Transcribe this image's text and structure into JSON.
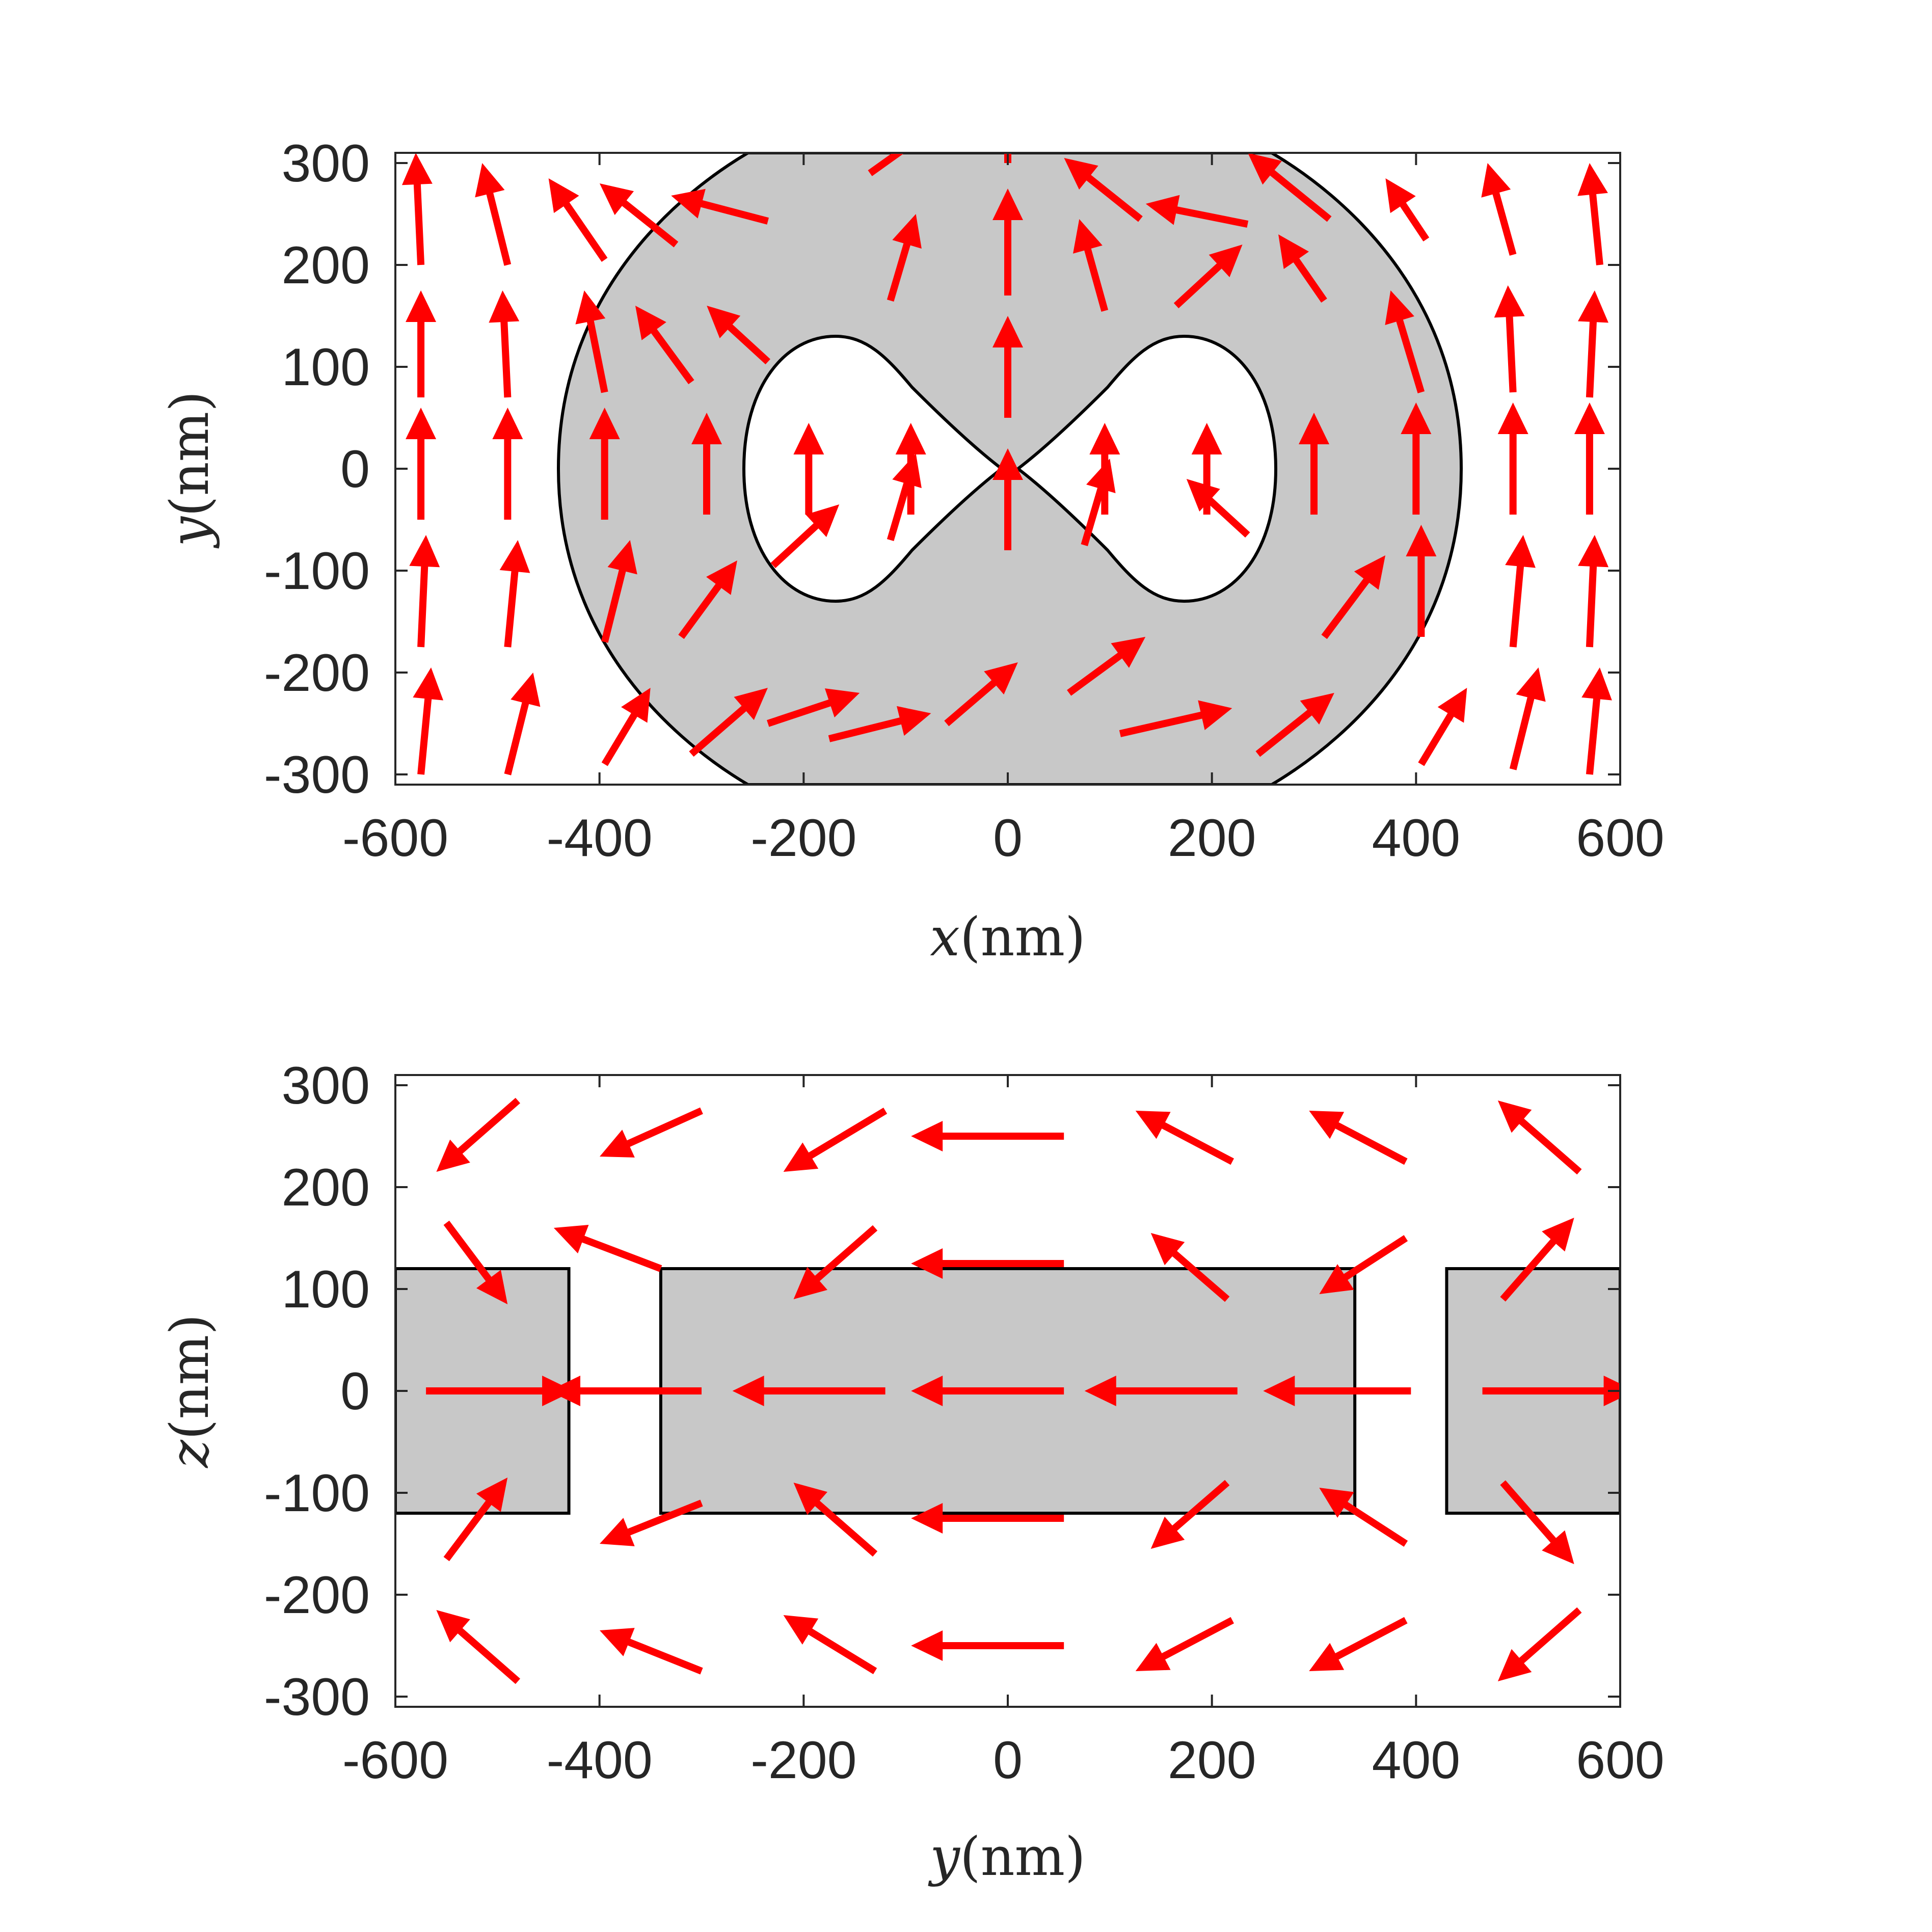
{
  "colors": {
    "arrow": "#ff0000",
    "fill": "#c8c8c8",
    "outline": "#000000",
    "text": "#262626"
  },
  "chart_data": [
    {
      "type": "quiver",
      "xlabel_var": "x",
      "xlabel_unit": "(nm)",
      "ylabel_var": "y",
      "ylabel_unit": "(nm)",
      "xlim": [
        -600,
        600
      ],
      "ylim": [
        -310,
        310
      ],
      "xticks": [
        "-600",
        "-400",
        "-200",
        "0",
        "200",
        "400",
        "600"
      ],
      "yticks": [
        "-300",
        "-200",
        "-100",
        "0",
        "100",
        "200",
        "300"
      ],
      "grid": false,
      "shapes": {
        "outer_region_x_range": [
          -440,
          440
        ],
        "inner_lobes_center_x": [
          -175,
          175
        ],
        "inner_lobe_half_height": 130
      },
      "arrows": [
        {
          "x": -575,
          "y": -300,
          "u": 10,
          "v": 105
        },
        {
          "x": -575,
          "y": -175,
          "u": 5,
          "v": 110
        },
        {
          "x": -575,
          "y": -50,
          "u": 0,
          "v": 110
        },
        {
          "x": -575,
          "y": 70,
          "u": 0,
          "v": 105
        },
        {
          "x": -575,
          "y": 200,
          "u": -5,
          "v": 110
        },
        {
          "x": -490,
          "y": -300,
          "u": 25,
          "v": 100
        },
        {
          "x": -490,
          "y": -175,
          "u": 10,
          "v": 105
        },
        {
          "x": -490,
          "y": -50,
          "u": 0,
          "v": 110
        },
        {
          "x": -490,
          "y": 70,
          "u": -5,
          "v": 105
        },
        {
          "x": -490,
          "y": 200,
          "u": -25,
          "v": 100
        },
        {
          "x": -395,
          "y": -290,
          "u": 45,
          "v": 75
        },
        {
          "x": -395,
          "y": -170,
          "u": 25,
          "v": 100
        },
        {
          "x": -395,
          "y": -50,
          "u": 0,
          "v": 110
        },
        {
          "x": -395,
          "y": 75,
          "u": -20,
          "v": 100
        },
        {
          "x": -395,
          "y": 205,
          "u": -55,
          "v": 80
        },
        {
          "x": -310,
          "y": -280,
          "u": 75,
          "v": 65
        },
        {
          "x": -320,
          "y": -165,
          "u": 55,
          "v": 75
        },
        {
          "x": -295,
          "y": -45,
          "u": 0,
          "v": 100
        },
        {
          "x": -310,
          "y": 85,
          "u": -55,
          "v": 75
        },
        {
          "x": -325,
          "y": 220,
          "u": -75,
          "v": 60
        },
        {
          "x": -235,
          "y": -250,
          "u": 90,
          "v": 30
        },
        {
          "x": -230,
          "y": -95,
          "u": 65,
          "v": 60
        },
        {
          "x": -195,
          "y": -45,
          "u": 0,
          "v": 90
        },
        {
          "x": -235,
          "y": 105,
          "u": -60,
          "v": 55
        },
        {
          "x": -235,
          "y": 243,
          "u": -95,
          "v": 25
        },
        {
          "x": -175,
          "y": -265,
          "u": 100,
          "v": 25
        },
        {
          "x": -115,
          "y": -70,
          "u": 25,
          "v": 85
        },
        {
          "x": -95,
          "y": -45,
          "u": 0,
          "v": 90
        },
        {
          "x": -115,
          "y": 165,
          "u": 25,
          "v": 85
        },
        {
          "x": -135,
          "y": 290,
          "u": 70,
          "v": 50
        },
        {
          "x": -60,
          "y": -250,
          "u": 70,
          "v": 60
        },
        {
          "x": 0,
          "y": -80,
          "u": 0,
          "v": 100
        },
        {
          "x": 0,
          "y": 50,
          "u": 0,
          "v": 100
        },
        {
          "x": 0,
          "y": 170,
          "u": 0,
          "v": 105
        },
        {
          "x": 0,
          "y": 300,
          "u": 0,
          "v": 100
        },
        {
          "x": 60,
          "y": -220,
          "u": 75,
          "v": 55
        },
        {
          "x": 110,
          "y": -260,
          "u": 110,
          "v": 25
        },
        {
          "x": 95,
          "y": -45,
          "u": 0,
          "v": 90
        },
        {
          "x": 75,
          "y": -75,
          "u": 25,
          "v": 85
        },
        {
          "x": 95,
          "y": 155,
          "u": -25,
          "v": 90
        },
        {
          "x": 130,
          "y": 245,
          "u": -75,
          "v": 60
        },
        {
          "x": 235,
          "y": -65,
          "u": -60,
          "v": 55
        },
        {
          "x": 195,
          "y": -45,
          "u": 0,
          "v": 90
        },
        {
          "x": 165,
          "y": 160,
          "u": 65,
          "v": 60
        },
        {
          "x": 235,
          "y": 240,
          "u": -100,
          "v": 20
        },
        {
          "x": 245,
          "y": -280,
          "u": 75,
          "v": 60
        },
        {
          "x": 300,
          "y": -45,
          "u": 0,
          "v": 100
        },
        {
          "x": 310,
          "y": -165,
          "u": 60,
          "v": 80
        },
        {
          "x": 310,
          "y": 165,
          "u": -45,
          "v": 65
        },
        {
          "x": 315,
          "y": 245,
          "u": -80,
          "v": 65
        },
        {
          "x": 405,
          "y": -290,
          "u": 45,
          "v": 75
        },
        {
          "x": 405,
          "y": -165,
          "u": 0,
          "v": 110
        },
        {
          "x": 400,
          "y": -45,
          "u": 0,
          "v": 110
        },
        {
          "x": 405,
          "y": 75,
          "u": -30,
          "v": 100
        },
        {
          "x": 410,
          "y": 225,
          "u": -40,
          "v": 60
        },
        {
          "x": 495,
          "y": -295,
          "u": 25,
          "v": 100
        },
        {
          "x": 495,
          "y": -175,
          "u": 10,
          "v": 110
        },
        {
          "x": 495,
          "y": -45,
          "u": 0,
          "v": 110
        },
        {
          "x": 495,
          "y": 75,
          "u": -5,
          "v": 105
        },
        {
          "x": 495,
          "y": 210,
          "u": -25,
          "v": 90
        },
        {
          "x": 570,
          "y": -300,
          "u": 10,
          "v": 105
        },
        {
          "x": 570,
          "y": -175,
          "u": 5,
          "v": 110
        },
        {
          "x": 570,
          "y": -45,
          "u": 0,
          "v": 110
        },
        {
          "x": 570,
          "y": 70,
          "u": 5,
          "v": 105
        },
        {
          "x": 580,
          "y": 200,
          "u": -10,
          "v": 100
        }
      ]
    },
    {
      "type": "quiver",
      "xlabel_var": "y",
      "xlabel_unit": "(nm)",
      "ylabel_var": "z",
      "ylabel_unit": "(nm)",
      "xlim": [
        -600,
        600
      ],
      "ylim": [
        -310,
        310
      ],
      "xticks": [
        "-600",
        "-400",
        "-200",
        "0",
        "200",
        "400",
        "600"
      ],
      "yticks": [
        "-300",
        "-200",
        "-100",
        "0",
        "100",
        "200",
        "300"
      ],
      "grid": false,
      "rectangles": [
        {
          "x0": -600,
          "x1": -430,
          "y0": -120,
          "y1": 120
        },
        {
          "x0": -340,
          "x1": 340,
          "y0": -120,
          "y1": 120
        },
        {
          "x0": 430,
          "x1": 600,
          "y0": -120,
          "y1": 120
        }
      ],
      "arrows": [
        {
          "x": -480,
          "y": 285,
          "u": -80,
          "v": -70
        },
        {
          "x": -550,
          "y": 165,
          "u": 60,
          "v": -80
        },
        {
          "x": -570,
          "y": 0,
          "u": 145,
          "v": 0
        },
        {
          "x": -550,
          "y": -165,
          "u": 60,
          "v": 80
        },
        {
          "x": -480,
          "y": -285,
          "u": -80,
          "v": 70
        },
        {
          "x": -300,
          "y": 275,
          "u": -100,
          "v": -45
        },
        {
          "x": -340,
          "y": 120,
          "u": -105,
          "v": 40
        },
        {
          "x": -300,
          "y": 0,
          "u": -150,
          "v": 0
        },
        {
          "x": -300,
          "y": -110,
          "u": -100,
          "v": -40
        },
        {
          "x": -300,
          "y": -275,
          "u": -100,
          "v": 40
        },
        {
          "x": -120,
          "y": 275,
          "u": -100,
          "v": -60
        },
        {
          "x": -130,
          "y": 160,
          "u": -80,
          "v": -70
        },
        {
          "x": -120,
          "y": 0,
          "u": -150,
          "v": 0
        },
        {
          "x": -130,
          "y": -160,
          "u": -80,
          "v": 70
        },
        {
          "x": -130,
          "y": -275,
          "u": -90,
          "v": 55
        },
        {
          "x": 55,
          "y": 250,
          "u": -150,
          "v": 0
        },
        {
          "x": 55,
          "y": 125,
          "u": -150,
          "v": 0
        },
        {
          "x": 55,
          "y": 0,
          "u": -150,
          "v": 0
        },
        {
          "x": 55,
          "y": -125,
          "u": -150,
          "v": 0
        },
        {
          "x": 55,
          "y": -250,
          "u": -150,
          "v": 0
        },
        {
          "x": 220,
          "y": 225,
          "u": -95,
          "v": 50
        },
        {
          "x": 215,
          "y": 90,
          "u": -75,
          "v": 65
        },
        {
          "x": 225,
          "y": 0,
          "u": -150,
          "v": 0
        },
        {
          "x": 215,
          "y": -90,
          "u": -75,
          "v": -65
        },
        {
          "x": 220,
          "y": -225,
          "u": -95,
          "v": -50
        },
        {
          "x": 390,
          "y": 225,
          "u": -95,
          "v": 50
        },
        {
          "x": 390,
          "y": 150,
          "u": -85,
          "v": -55
        },
        {
          "x": 395,
          "y": 0,
          "u": -145,
          "v": 0
        },
        {
          "x": 390,
          "y": -150,
          "u": -85,
          "v": 55
        },
        {
          "x": 390,
          "y": -225,
          "u": -95,
          "v": -50
        },
        {
          "x": 560,
          "y": 215,
          "u": -80,
          "v": 70
        },
        {
          "x": 485,
          "y": 90,
          "u": 70,
          "v": 80
        },
        {
          "x": 465,
          "y": 0,
          "u": 150,
          "v": 0
        },
        {
          "x": 485,
          "y": -90,
          "u": 70,
          "v": -80
        },
        {
          "x": 560,
          "y": -215,
          "u": -80,
          "v": -70
        }
      ]
    }
  ]
}
